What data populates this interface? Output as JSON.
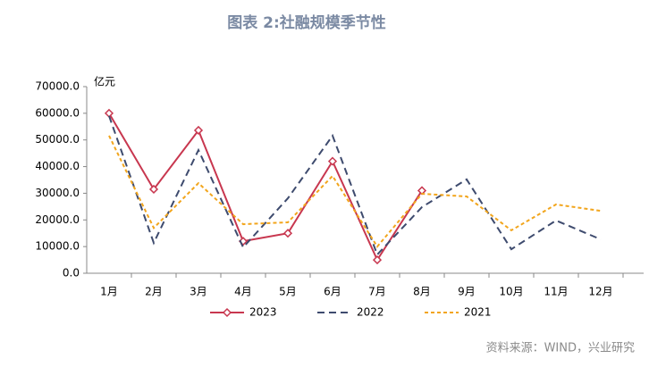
{
  "chart_data": {
    "type": "line",
    "title": "图表 2:社融规模季节性",
    "y_label": "亿元",
    "source": "资料来源：WIND，兴业研究",
    "categories": [
      "1月",
      "2月",
      "3月",
      "4月",
      "5月",
      "6月",
      "7月",
      "8月",
      "9月",
      "10月",
      "11月",
      "12月"
    ],
    "series": [
      {
        "name": "2023",
        "color": "#c8374f",
        "dash": "solid",
        "marker": "diamond",
        "values": [
          60000,
          31500,
          53600,
          12000,
          15000,
          42000,
          5000,
          31000,
          null,
          null,
          null,
          null
        ]
      },
      {
        "name": "2022",
        "color": "#3e4b6e",
        "dash": "dashed",
        "values": [
          59000,
          11400,
          46200,
          9700,
          28100,
          51600,
          7000,
          24800,
          35200,
          9000,
          19800,
          12700
        ]
      },
      {
        "name": "2021",
        "color": "#f2a51c",
        "dash": "dotted",
        "values": [
          51600,
          17000,
          33800,
          18400,
          19100,
          36500,
          10000,
          29800,
          28800,
          16100,
          25800,
          23400
        ]
      }
    ],
    "ylim": [
      0,
      70000
    ],
    "yticks": [
      {
        "value": 0,
        "label": "0.0"
      },
      {
        "value": 10000,
        "label": "10000.0"
      },
      {
        "value": 20000,
        "label": "20000.0"
      },
      {
        "value": 30000,
        "label": "30000.0"
      },
      {
        "value": 40000,
        "label": "40000.0"
      },
      {
        "value": 50000,
        "label": "50000.0"
      },
      {
        "value": 60000,
        "label": "60000.0"
      },
      {
        "value": 70000,
        "label": "70000.0"
      }
    ],
    "legend": "bottom"
  }
}
